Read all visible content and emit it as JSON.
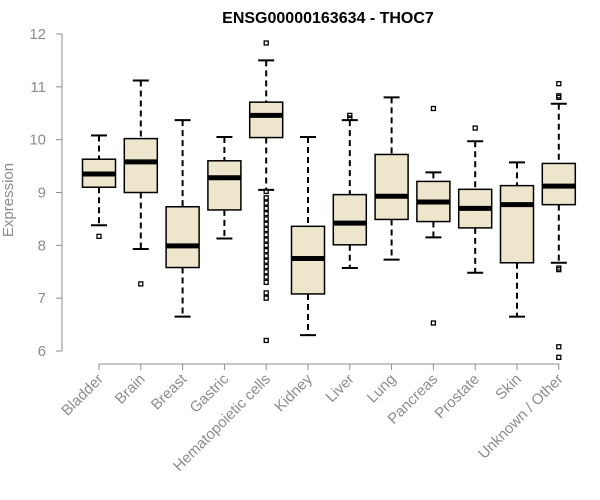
{
  "chart_data": {
    "type": "box",
    "title": "ENSG00000163634 - THOC7",
    "xlabel": "",
    "ylabel": "Expression",
    "ylim": [
      5.7,
      12.1
    ],
    "yticks": [
      6,
      7,
      8,
      9,
      10,
      11,
      12
    ],
    "box_fill": "#ede6cc",
    "box_stroke": "#000000",
    "categories": [
      "Bladder",
      "Brain",
      "Breast",
      "Gastric",
      "Hematopoietic cells",
      "Kidney",
      "Liver",
      "Lung",
      "Pancreas",
      "Prostate",
      "Skin",
      "Unknown / Other"
    ],
    "boxes": [
      {
        "whisker_low": 8.38,
        "q1": 9.1,
        "median": 9.35,
        "q3": 9.63,
        "whisker_high": 10.08,
        "outliers": [
          8.17
        ]
      },
      {
        "whisker_low": 7.93,
        "q1": 9.0,
        "median": 9.58,
        "q3": 10.02,
        "whisker_high": 11.12,
        "outliers": [
          7.27
        ]
      },
      {
        "whisker_low": 6.65,
        "q1": 7.58,
        "median": 7.99,
        "q3": 8.73,
        "whisker_high": 10.37,
        "outliers": []
      },
      {
        "whisker_low": 8.13,
        "q1": 8.67,
        "median": 9.28,
        "q3": 9.6,
        "whisker_high": 10.05,
        "outliers": []
      },
      {
        "whisker_low": 9.05,
        "q1": 10.04,
        "median": 10.46,
        "q3": 10.71,
        "whisker_high": 11.5,
        "outliers": [
          11.83,
          9.02,
          8.9,
          8.8,
          8.7,
          8.6,
          8.5,
          8.4,
          8.3,
          8.2,
          8.1,
          8.0,
          7.9,
          7.8,
          7.7,
          7.6,
          7.5,
          7.4,
          7.3,
          7.1,
          7.0,
          6.2
        ]
      },
      {
        "whisker_low": 6.3,
        "q1": 7.08,
        "median": 7.75,
        "q3": 8.36,
        "whisker_high": 10.05,
        "outliers": []
      },
      {
        "whisker_low": 7.57,
        "q1": 8.01,
        "median": 8.42,
        "q3": 8.96,
        "whisker_high": 10.37,
        "outliers": [
          10.46,
          10.41
        ]
      },
      {
        "whisker_low": 7.73,
        "q1": 8.49,
        "median": 8.93,
        "q3": 9.72,
        "whisker_high": 10.8,
        "outliers": []
      },
      {
        "whisker_low": 8.15,
        "q1": 8.45,
        "median": 8.82,
        "q3": 9.21,
        "whisker_high": 9.38,
        "outliers": [
          10.59,
          6.53
        ]
      },
      {
        "whisker_low": 7.48,
        "q1": 8.33,
        "median": 8.7,
        "q3": 9.06,
        "whisker_high": 9.97,
        "outliers": [
          10.22
        ]
      },
      {
        "whisker_low": 6.65,
        "q1": 7.67,
        "median": 8.77,
        "q3": 9.13,
        "whisker_high": 9.57,
        "outliers": []
      },
      {
        "whisker_low": 7.67,
        "q1": 8.77,
        "median": 9.12,
        "q3": 9.55,
        "whisker_high": 10.68,
        "outliers": [
          11.06,
          10.83,
          10.8,
          7.57,
          7.54,
          6.08,
          5.88
        ]
      }
    ]
  }
}
